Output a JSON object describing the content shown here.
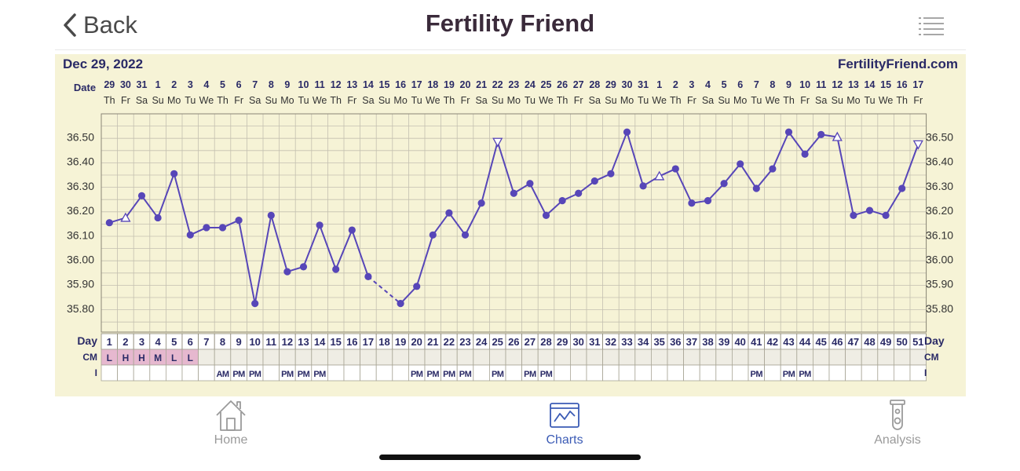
{
  "nav": {
    "back_label": "Back",
    "title": "Fertility Friend",
    "back_icon": "chevron-left-icon",
    "menu_icon": "list-icon"
  },
  "chart_data": {
    "type": "line",
    "start_date_label": "Dec 29, 2022",
    "site": "FertilityFriend.com",
    "row_label_date": "Date",
    "row_label_day": "Day",
    "row_label_cm": "CM",
    "row_label_i": "I",
    "dates": [
      "29",
      "30",
      "31",
      "1",
      "2",
      "3",
      "4",
      "5",
      "6",
      "7",
      "8",
      "9",
      "10",
      "11",
      "12",
      "13",
      "14",
      "15",
      "16",
      "17",
      "18",
      "19",
      "20",
      "21",
      "22",
      "23",
      "24",
      "25",
      "26",
      "27",
      "28",
      "29",
      "30",
      "31",
      "1",
      "2",
      "3",
      "4",
      "5",
      "6",
      "7",
      "8",
      "9",
      "10",
      "11",
      "12",
      "13",
      "14",
      "15",
      "16",
      "17"
    ],
    "weekdays": [
      "Th",
      "Fr",
      "Sa",
      "Su",
      "Mo",
      "Tu",
      "We",
      "Th",
      "Fr",
      "Sa",
      "Su",
      "Mo",
      "Tu",
      "We",
      "Th",
      "Fr",
      "Sa",
      "Su",
      "Mo",
      "Tu",
      "We",
      "Th",
      "Fr",
      "Sa",
      "Su",
      "Mo",
      "Tu",
      "We",
      "Th",
      "Fr",
      "Sa",
      "Su",
      "Mo",
      "Tu",
      "We",
      "Th",
      "Fr",
      "Sa",
      "Su",
      "Mo",
      "Tu",
      "We",
      "Th",
      "Fr",
      "Sa",
      "Su",
      "Mo",
      "Tu",
      "We",
      "Th",
      "Fr"
    ],
    "days": [
      "1",
      "2",
      "3",
      "4",
      "5",
      "6",
      "7",
      "8",
      "9",
      "10",
      "11",
      "12",
      "13",
      "14",
      "15",
      "16",
      "17",
      "18",
      "19",
      "20",
      "21",
      "22",
      "23",
      "24",
      "25",
      "26",
      "27",
      "28",
      "29",
      "30",
      "31",
      "32",
      "33",
      "34",
      "35",
      "36",
      "37",
      "38",
      "39",
      "40",
      "41",
      "42",
      "43",
      "44",
      "45",
      "46",
      "47",
      "48",
      "49",
      "50",
      "51"
    ],
    "temperatures": [
      36.15,
      36.17,
      36.26,
      36.17,
      36.35,
      36.1,
      36.13,
      36.13,
      36.16,
      35.82,
      36.18,
      35.95,
      35.97,
      36.14,
      35.96,
      36.12,
      35.93,
      null,
      35.82,
      35.89,
      36.1,
      36.19,
      36.1,
      36.23,
      36.48,
      36.27,
      36.31,
      36.18,
      36.24,
      36.27,
      36.32,
      36.35,
      36.52,
      36.3,
      36.34,
      36.37,
      36.23,
      36.24,
      36.31,
      36.39,
      36.29,
      36.37,
      36.52,
      36.43,
      36.51,
      36.5,
      36.18,
      36.2,
      36.18,
      36.29,
      36.47
    ],
    "open_markers": [
      2,
      35,
      46
    ],
    "open_markers_down": [
      25,
      51
    ],
    "dashed_segments": [
      [
        17,
        19
      ]
    ],
    "cervical_mucus": [
      "L",
      "H",
      "H",
      "M",
      "L",
      "L",
      "",
      "",
      "",
      "",
      "",
      "",
      "",
      "",
      "",
      "",
      "",
      "",
      "",
      "",
      "",
      "",
      "",
      "",
      "",
      "",
      "",
      "",
      "",
      "",
      "",
      "",
      "",
      "",
      "",
      "",
      "",
      "",
      "",
      "",
      "",
      "",
      "",
      "",
      "",
      "",
      "",
      "",
      "",
      "",
      ""
    ],
    "intercourse": [
      "",
      "",
      "",
      "",
      "",
      "",
      "",
      "AM",
      "PM",
      "PM",
      "",
      "PM",
      "PM",
      "PM",
      "",
      "",
      "",
      "",
      "",
      "PM",
      "PM",
      "PM",
      "PM",
      "",
      "PM",
      "",
      "PM",
      "PM",
      "",
      "",
      "",
      "",
      "",
      "",
      "",
      "",
      "",
      "",
      "",
      "",
      "PM",
      "",
      "PM",
      "PM",
      "",
      "",
      "",
      "",
      "",
      "",
      ""
    ],
    "y_ticks": [
      "36.50",
      "36.40",
      "36.30",
      "36.20",
      "36.10",
      "36.00",
      "35.90",
      "35.80"
    ],
    "ylim": [
      35.75,
      36.6
    ],
    "colors": {
      "line": "#5746b8",
      "background": "#f6f3d6",
      "grid": "#c4c0b0",
      "cm_fill": "#e6b8cf",
      "date_text": "#2a2a66"
    }
  },
  "tabs": [
    {
      "label": "Home",
      "icon": "house-icon",
      "active": false
    },
    {
      "label": "Charts",
      "icon": "chart-icon",
      "active": true
    },
    {
      "label": "Analysis",
      "icon": "test-tube-icon",
      "active": false
    }
  ]
}
